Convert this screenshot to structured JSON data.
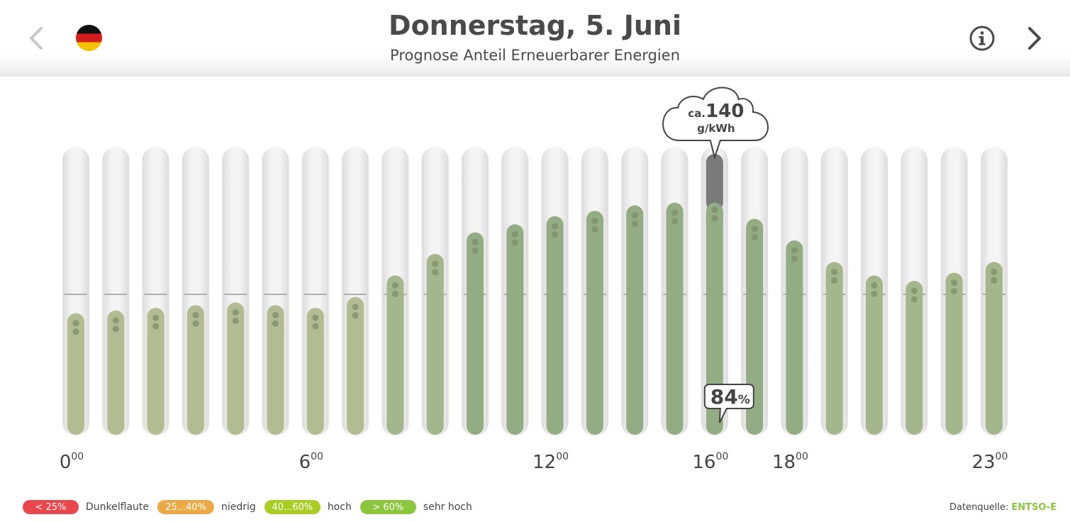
{
  "header": {
    "title": "Donnerstag, 5. Juni",
    "subtitle": "Prognose Anteil Erneuerbarer Energien",
    "prev_icon": "chevron-left-icon",
    "next_icon": "chevron-right-icon",
    "info_icon": "info-icon",
    "flag_icon": "germany-flag-icon"
  },
  "chart_data": {
    "type": "bar",
    "categories": [
      "0",
      "1",
      "2",
      "3",
      "4",
      "5",
      "6",
      "7",
      "8",
      "9",
      "10",
      "11",
      "12",
      "13",
      "14",
      "15",
      "16",
      "17",
      "18",
      "19",
      "20",
      "21",
      "22",
      "23"
    ],
    "values": [
      43,
      44,
      45,
      46,
      47,
      46,
      45,
      49,
      57,
      65,
      73,
      76,
      79,
      81,
      83,
      84,
      84,
      78,
      70,
      62,
      57,
      55,
      58,
      62
    ],
    "ylim": [
      0,
      100
    ],
    "reference_line": 50,
    "x_tick_labels": [
      {
        "hour": 0,
        "major": "0",
        "sup": "00"
      },
      {
        "hour": 6,
        "major": "6",
        "sup": "00"
      },
      {
        "hour": 12,
        "major": "12",
        "sup": "00"
      },
      {
        "hour": 16,
        "major": "16",
        "sup": "00"
      },
      {
        "hour": 18,
        "major": "18",
        "sup": "00"
      },
      {
        "hour": 23,
        "major": "23",
        "sup": "00"
      }
    ],
    "selected_hour": 16,
    "selected_label": {
      "value": "84",
      "unit": "%"
    },
    "emission_callout": {
      "prefix": "ca.",
      "value": "140",
      "unit": "g/kWh"
    },
    "colors": {
      "light": "#b3bc90",
      "mid": "#a6b68c",
      "dark": "#94ac84",
      "selected_top": "#7a7a7a",
      "track": "#ececec",
      "ref_line": "#b0b0b0",
      "dots": "#7e8e6a"
    }
  },
  "legend": [
    {
      "badge": "< 25%",
      "label": "Dunkelflaute",
      "color": "#e8474c"
    },
    {
      "badge": "25...40%",
      "label": "niedrig",
      "color": "#eba946"
    },
    {
      "badge": "40...60%",
      "label": "hoch",
      "color": "#aacd25"
    },
    {
      "badge": "> 60%",
      "label": "sehr hoch",
      "color": "#8cc63f"
    }
  ],
  "source": {
    "label": "Datenquelle:",
    "name": "ENTSO-E",
    "color": "#8cc63f"
  }
}
